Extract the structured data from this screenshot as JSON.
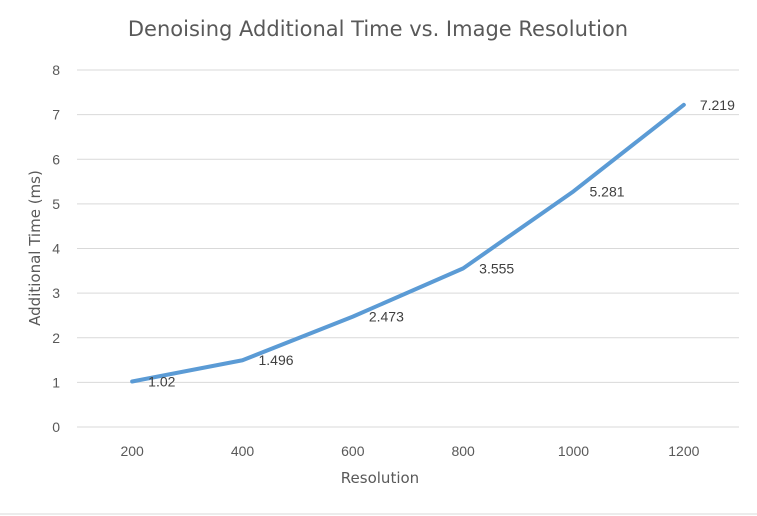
{
  "chart_data": {
    "type": "line",
    "title": "Denoising Additional Time vs. Image Resolution",
    "xlabel": "Resolution",
    "ylabel": "Additional Time (ms)",
    "categories": [
      "200",
      "400",
      "600",
      "800",
      "1000",
      "1200"
    ],
    "series": [
      {
        "values": [
          1.02,
          1.496,
          2.473,
          3.555,
          5.281,
          7.219
        ],
        "labels": [
          "1.02",
          "1.496",
          "2.473",
          "3.555",
          "5.281",
          "7.219"
        ],
        "color": "#5b9bd5"
      }
    ],
    "ylim": [
      0,
      8
    ],
    "yticks": [
      "0",
      "1",
      "2",
      "3",
      "4",
      "5",
      "6",
      "7",
      "8"
    ],
    "grid": true,
    "legend": "none"
  }
}
